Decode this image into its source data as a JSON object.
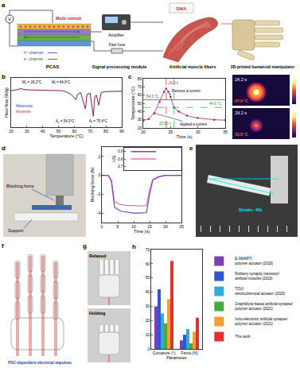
{
  "diagrams": {
    "a": {
      "label": "a",
      "source": "V",
      "stimuli": "Multi-stimuli",
      "h_channel": "h⁺-channel",
      "e_channel": "e⁻-channel",
      "device": "PCAS",
      "amplifier": "Amplifier",
      "fuse": "Fast fuse",
      "module": "Signal processing module",
      "sma": "SMA",
      "fibers": "Artificial muscle fibers",
      "manipulator": "3D-printed humanoid manipulator"
    },
    "c_thermal": [
      {
        "time": "24.2 s",
        "temperature": "67.9 °C"
      },
      {
        "time": "29.2 s",
        "temperature": "33.8 °C"
      }
    ],
    "d_photo": {
      "blocking_force": "Blocking force",
      "support": "Support"
    },
    "e": {
      "label": "e",
      "strain": "Strain: 4%"
    },
    "f": {
      "label": "f",
      "caption": "PSC-dependent electrical impulses"
    },
    "g": {
      "label": "g",
      "states": [
        "Relaxed",
        "Holding"
      ]
    }
  },
  "chart_data": [
    {
      "label": "b",
      "type": "line",
      "x_label": "Temperature (°C)",
      "y_label": "Heat flow (W/g)",
      "color": "#7a1f45",
      "x": [
        20,
        22,
        24,
        26.2,
        28,
        32,
        38,
        44.9,
        48,
        52,
        54.3,
        58,
        61,
        62,
        64,
        67,
        68,
        70,
        72,
        73,
        74,
        75.4,
        77,
        80,
        85,
        90
      ],
      "values": [
        0.6,
        0.62,
        0.66,
        0.72,
        0.66,
        0.64,
        0.63,
        0.6,
        0.62,
        0.6,
        0.55,
        0.4,
        0.1,
        0.4,
        0.5,
        -0.4,
        0.4,
        0.45,
        -0.8,
        0.3,
        0.35,
        -0.2,
        0.5,
        0.55,
        0.56,
        0.57
      ],
      "xlim": [
        20,
        90
      ],
      "xticks": [
        20,
        30,
        40,
        50,
        60,
        70,
        80,
        90
      ],
      "ylim": [
        -1.4,
        1.3
      ],
      "tick_labels": "x",
      "transitions": [
        {
          "x": 26.2,
          "symbol": "M",
          "sub": "s",
          "text": "= 26.2°C"
        },
        {
          "x": 44.9,
          "symbol": "M",
          "sub": "f",
          "text": "= 44.9°C"
        },
        {
          "x": 54.3,
          "symbol": "A",
          "sub": "s",
          "text": "= 54.3°C"
        },
        {
          "x": 75.4,
          "symbol": "A",
          "sub": "f",
          "text": "= 75.4°C"
        }
      ],
      "phases": [
        "Martensite",
        "Austenite"
      ]
    },
    {
      "label": "c",
      "type": "line",
      "x_label": "Time (s)",
      "y_label": "Temperature (°C)",
      "color": "#a0207a",
      "marker": "circle",
      "line_style": "solid",
      "x": [
        20,
        21,
        22,
        23,
        23.8,
        24.2,
        24.6,
        25,
        25.63,
        26.5,
        28,
        30,
        33,
        35
      ],
      "values": [
        29,
        31,
        38,
        52,
        64,
        67.9,
        64,
        58,
        44.9,
        40,
        35,
        32,
        30,
        29.5
      ],
      "xlim": [
        20,
        35
      ],
      "xticks": [
        20,
        25,
        30,
        35
      ],
      "ylim": [
        20,
        80
      ],
      "yticks": [
        20,
        30,
        40,
        50,
        60,
        70,
        80
      ],
      "ref_lines": [
        {
          "value": 54.3,
          "label": "54.3 °C",
          "color": "#2f3fa0",
          "line_style": "solid"
        },
        {
          "value": 44.9,
          "label": "44.9 °C",
          "color": "#2ca02c",
          "line_style": "dashed"
        }
      ],
      "time_marks": [
        {
          "value": 24.2,
          "label": "24.2 s",
          "color": "#e02020",
          "line_style": "dashed"
        },
        {
          "value": 25.63,
          "label": "25.63 s",
          "color": "#2ca02c",
          "line_style": "dashed"
        }
      ],
      "events": [
        {
          "x": 22,
          "y": 38,
          "text": "Applied a current"
        },
        {
          "x": 24.8,
          "y": 61,
          "text": "Remove a current"
        }
      ]
    },
    {
      "label": "d",
      "type": "line",
      "x_label": "Time (s)",
      "y_label": "Blocking force (N)",
      "x": [
        0,
        2,
        3,
        4,
        6,
        8,
        10,
        12,
        14,
        15,
        16,
        18,
        20,
        22,
        25
      ],
      "series": [
        {
          "color": "#e07ab0",
          "values": [
            0,
            0,
            -0.5,
            -2.8,
            -3.1,
            -3.2,
            -3.2,
            -3.25,
            -3.2,
            -1.5,
            -0.4,
            -0.1,
            0,
            0,
            0
          ]
        },
        {
          "color": "#8040c0",
          "values": [
            0,
            0,
            -0.6,
            -3.4,
            -3.8,
            -3.9,
            -4,
            -4,
            -3.95,
            -2,
            -0.5,
            -0.15,
            0,
            0,
            0
          ]
        }
      ],
      "xlim": [
        0,
        25
      ],
      "xticks": [
        0,
        5,
        10,
        15,
        20,
        25
      ],
      "ylim": [
        -5,
        3
      ],
      "yticks": [
        -4,
        -2,
        0,
        2
      ],
      "inset": {
        "type": "line",
        "y_label": "I (A)",
        "x": [
          3,
          14
        ],
        "series": [
          {
            "color": "#e07ab0",
            "values": [
              0.8,
              0.8
            ]
          },
          {
            "color": "#8040c0",
            "values": [
              0.9,
              0.9
            ]
          }
        ],
        "xlim": [
          0,
          25
        ],
        "ylim": [
          0.65,
          0.95
        ],
        "yticks": [
          0.7,
          0.8,
          0.9
        ],
        "tick_labels": "y"
      }
    },
    {
      "label": "h",
      "type": "bar",
      "x_label": "Parameter",
      "categories": [
        "Curvature (°)",
        "Force (N)"
      ],
      "series": [
        {
          "name": "E-SMART/polymer actuator (2018)",
          "color": "#7b3fb5",
          "values": [
            30,
            6
          ]
        },
        {
          "name": "Rubbery synaptic transistor/artificial muscles (2019)",
          "color": "#3355cc",
          "values": [
            42,
            10
          ]
        },
        {
          "name": "TOU/electrochemical actuator (2020)",
          "color": "#33aadd",
          "values": [
            25,
            14
          ]
        },
        {
          "name": "Graphdiyne-based artificial synapse/polymer actuator (2021)",
          "color": "#44aa44",
          "values": [
            18,
            4
          ]
        },
        {
          "name": "Ionic-electronic artificial synapse/polymer actuator (2021)",
          "color": "#f0a030",
          "values": [
            35,
            12
          ]
        },
        {
          "name": "This work",
          "color": "#e03030",
          "values": [
            62,
            22
          ]
        }
      ],
      "ylim": [
        0,
        70
      ],
      "yticks": [
        0,
        10,
        20,
        30,
        40,
        50,
        60,
        70
      ],
      "legend": "right"
    }
  ]
}
